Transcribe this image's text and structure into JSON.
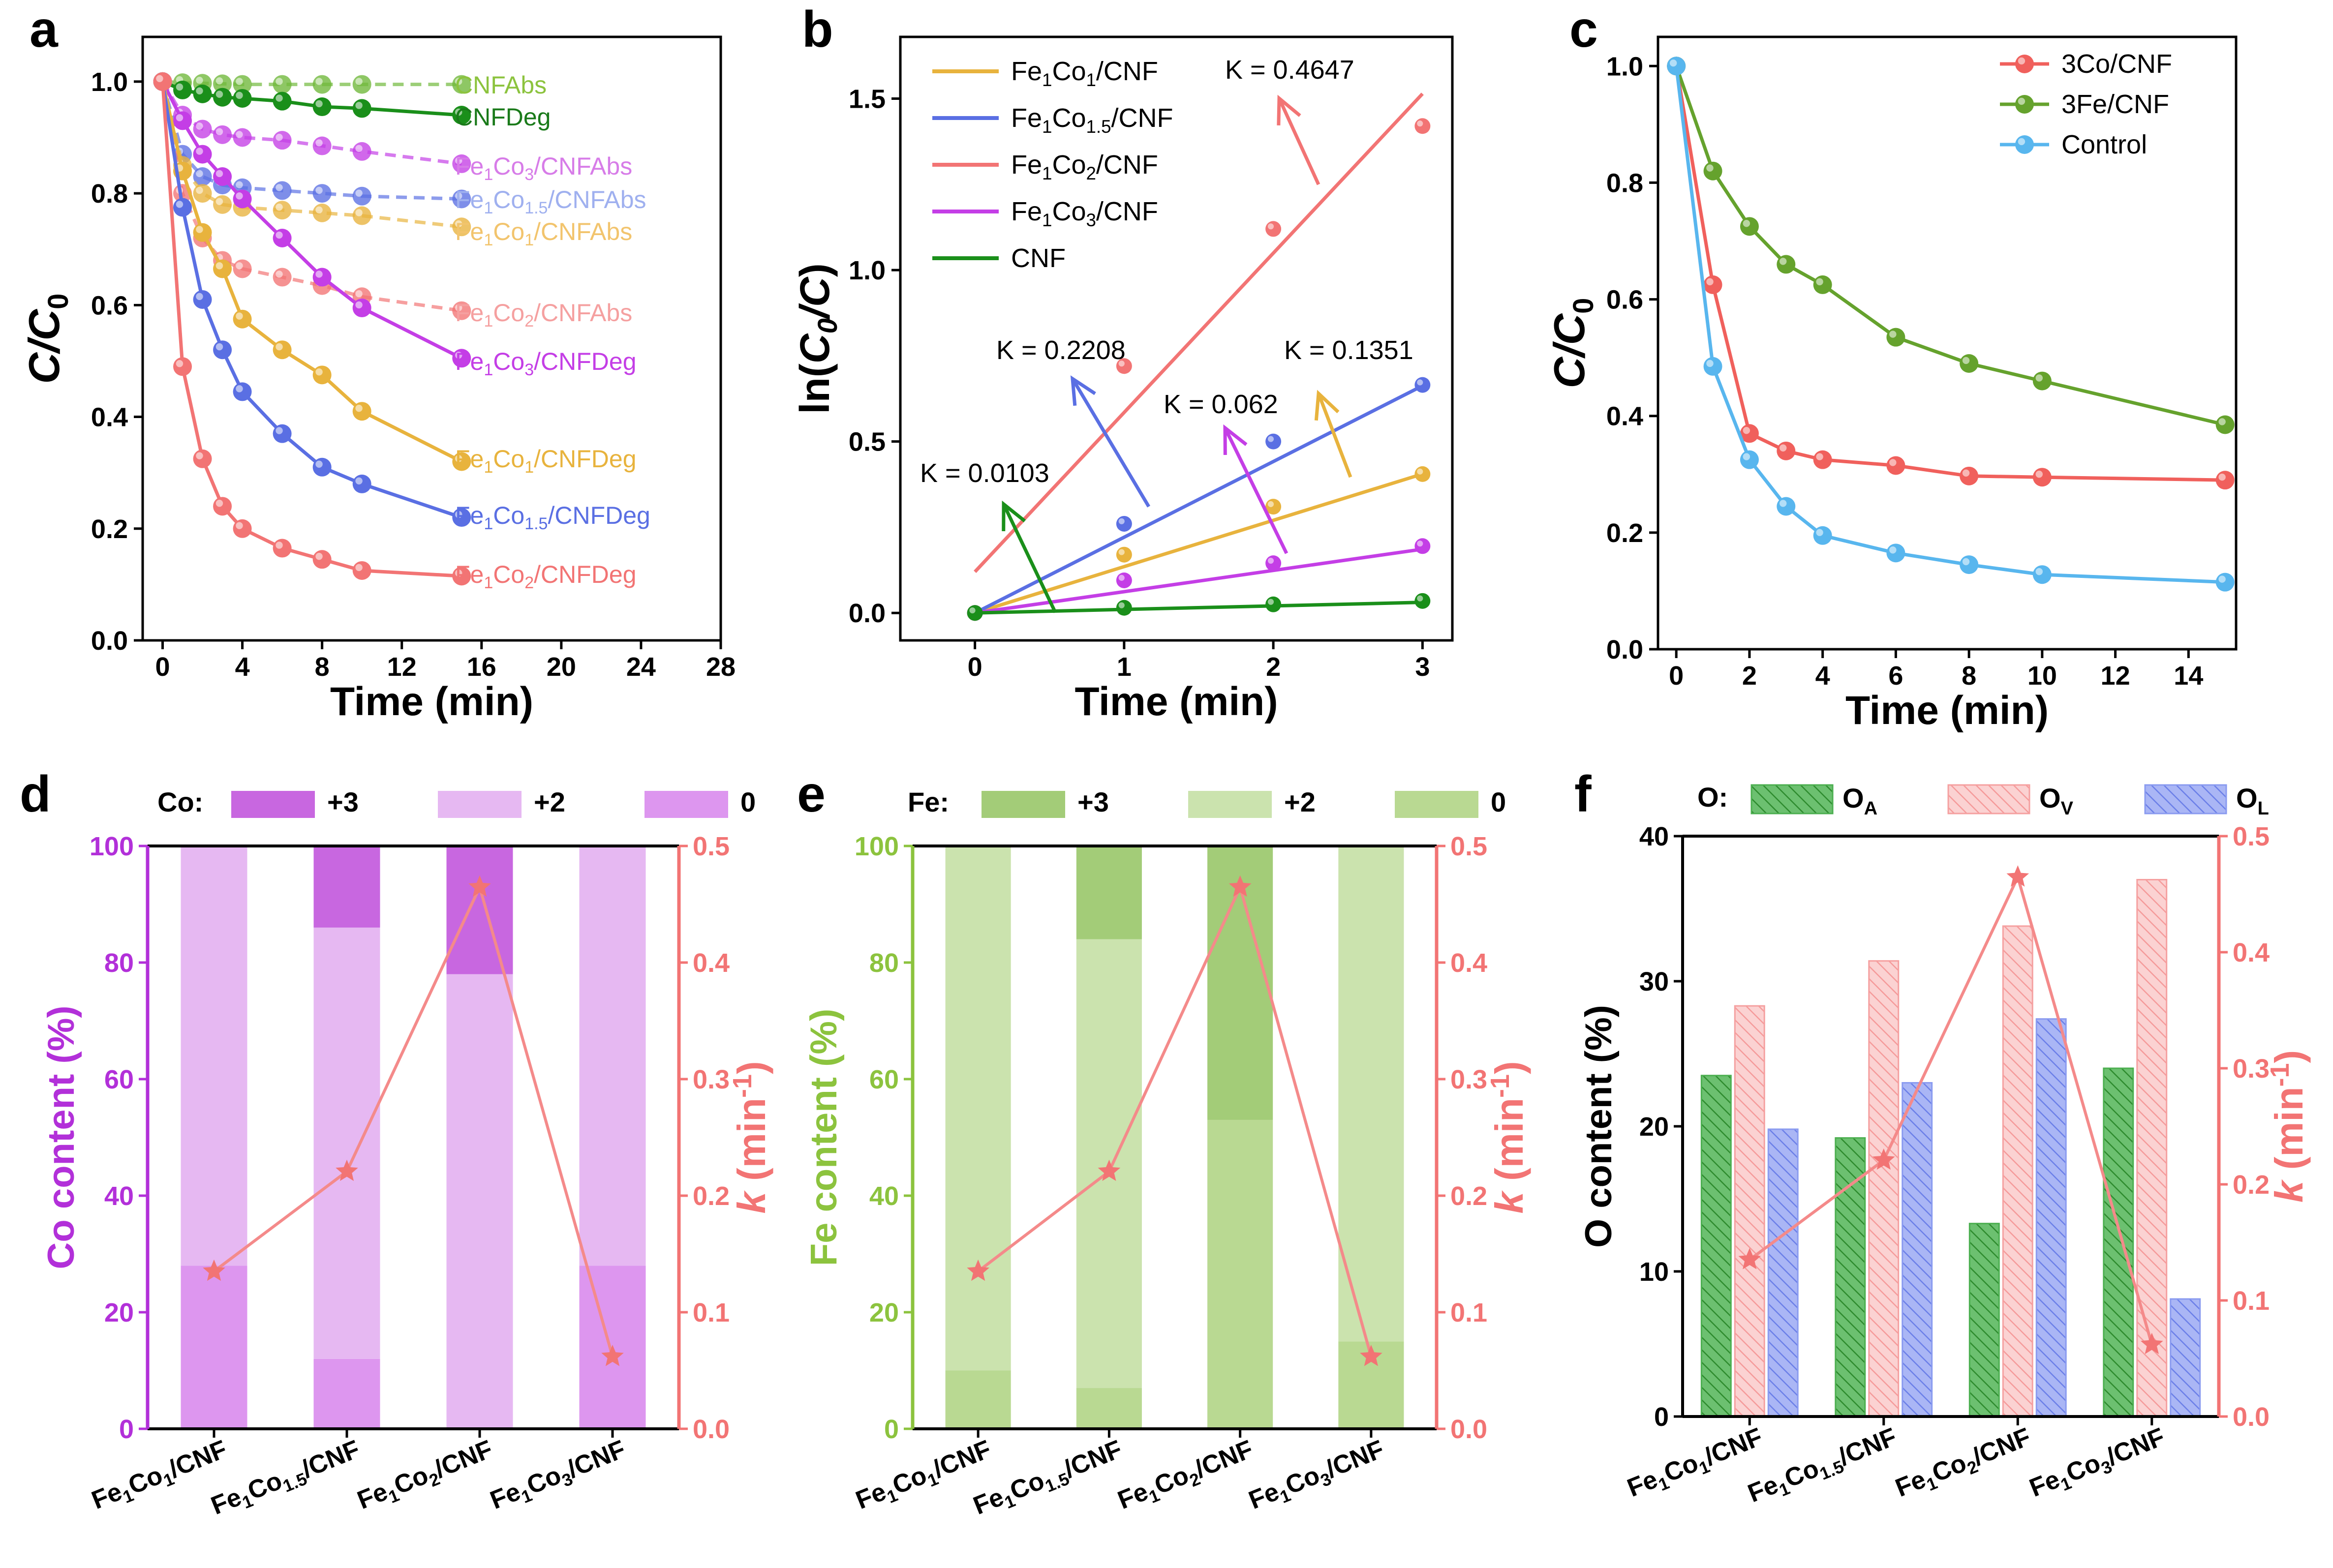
{
  "panel_letters": [
    "a",
    "b",
    "c",
    "d",
    "e",
    "f"
  ],
  "colors": {
    "cnf": "#1a8f1a",
    "cnf_abs": "#6fb83a",
    "fe1co1": "#e8b33d",
    "fe1co15": "#5a6fe3",
    "fe1co2": "#f27474",
    "fe1co3": "#c43ee6",
    "co3": "#f0605c",
    "fe3": "#65a22d",
    "control": "#58b6ee",
    "co_plus3": "#c867e0",
    "co_plus2": "#e6b8f2",
    "co_zero": "#dd96ef",
    "fe_plus3": "#a3cc78",
    "fe_plus2": "#cbe3ae",
    "fe_zero": "#b9d992",
    "oa": "#4caf50",
    "ov": "#f5a0a0",
    "ol": "#8a9bf0",
    "k_line": "#f48a8a",
    "co_axis": "#b230d9",
    "fe_axis": "#8cc33e",
    "k_axis": "#f27474"
  },
  "chart_data": [
    {
      "type": "line",
      "panel": "a",
      "xlabel": "Time (min)",
      "ylabel": "C/C0",
      "xlim": [
        -1,
        28
      ],
      "ylim": [
        0,
        1.08
      ],
      "xticks": [
        "0",
        "4",
        "8",
        "12",
        "16",
        "20",
        "24",
        "28"
      ],
      "yticks": [
        "0.0",
        "0.2",
        "0.4",
        "0.6",
        "0.8",
        "1.0"
      ],
      "series": [
        {
          "name": "CNF Abs",
          "x": [
            0,
            1,
            2,
            3,
            4,
            6,
            8,
            10,
            15
          ],
          "y": [
            1.0,
            0.998,
            0.997,
            0.996,
            0.995,
            0.995,
            0.995,
            0.995,
            0.995
          ]
        },
        {
          "name": "CNF Deg",
          "x": [
            0,
            1,
            2,
            3,
            4,
            6,
            8,
            10,
            15
          ],
          "y": [
            1.0,
            0.985,
            0.978,
            0.972,
            0.97,
            0.965,
            0.955,
            0.952,
            0.94
          ]
        },
        {
          "name": "Fe1Co3/CNF Abs",
          "x": [
            0,
            1,
            2,
            3,
            4,
            6,
            8,
            10,
            15
          ],
          "y": [
            1.0,
            0.94,
            0.915,
            0.905,
            0.9,
            0.895,
            0.885,
            0.875,
            0.853
          ]
        },
        {
          "name": "Fe1Co1.5/CNF Abs",
          "x": [
            0,
            1,
            2,
            3,
            4,
            6,
            8,
            10,
            15
          ],
          "y": [
            1.0,
            0.87,
            0.83,
            0.815,
            0.81,
            0.805,
            0.8,
            0.795,
            0.79
          ]
        },
        {
          "name": "Fe1Co1/CNF Abs",
          "x": [
            0,
            1,
            2,
            3,
            4,
            6,
            8,
            10,
            15
          ],
          "y": [
            1.0,
            0.85,
            0.8,
            0.78,
            0.775,
            0.77,
            0.765,
            0.76,
            0.74
          ]
        },
        {
          "name": "Fe1Co2/CNF Abs",
          "x": [
            0,
            1,
            2,
            3,
            4,
            6,
            8,
            10,
            15
          ],
          "y": [
            1.0,
            0.8,
            0.72,
            0.68,
            0.665,
            0.65,
            0.635,
            0.615,
            0.59
          ]
        },
        {
          "name": "Fe1Co3/CNF Deg",
          "x": [
            0,
            1,
            2,
            3,
            4,
            6,
            8,
            10,
            15
          ],
          "y": [
            1.0,
            0.93,
            0.87,
            0.83,
            0.79,
            0.72,
            0.65,
            0.595,
            0.505
          ]
        },
        {
          "name": "Fe1Co1/CNF Deg",
          "x": [
            0,
            1,
            2,
            3,
            4,
            6,
            8,
            10,
            15
          ],
          "y": [
            1.0,
            0.84,
            0.73,
            0.665,
            0.575,
            0.52,
            0.475,
            0.41,
            0.32
          ]
        },
        {
          "name": "Fe1Co1.5/CNF Deg",
          "x": [
            0,
            1,
            2,
            3,
            4,
            6,
            8,
            10,
            15
          ],
          "y": [
            1.0,
            0.775,
            0.61,
            0.52,
            0.445,
            0.37,
            0.31,
            0.28,
            0.22
          ]
        },
        {
          "name": "Fe1Co2/CNF Deg",
          "x": [
            0,
            1,
            2,
            3,
            4,
            6,
            8,
            10,
            15
          ],
          "y": [
            1.0,
            0.49,
            0.325,
            0.24,
            0.2,
            0.165,
            0.145,
            0.125,
            0.115
          ]
        }
      ]
    },
    {
      "type": "scatter",
      "panel": "b",
      "xlabel": "Time (min)",
      "ylabel": "ln(C0/C)",
      "xlim": [
        -0.5,
        3.2
      ],
      "ylim": [
        -0.08,
        1.68
      ],
      "xticks": [
        "0",
        "1",
        "2",
        "3"
      ],
      "yticks": [
        "0.0",
        "0.5",
        "1.0",
        "1.5"
      ],
      "series": [
        {
          "name": "Fe1Co1/CNF",
          "x": [
            0,
            1,
            2,
            3
          ],
          "y": [
            0.0,
            0.17,
            0.31,
            0.405
          ],
          "fit": [
            0.0,
            0.1351
          ],
          "k_label": "K = 0.1351"
        },
        {
          "name": "Fe1Co1.5/CNF",
          "x": [
            0,
            1,
            2,
            3
          ],
          "y": [
            0.0,
            0.26,
            0.5,
            0.665
          ],
          "fit": [
            0.0,
            0.2208
          ],
          "k_label": "K = 0.2208"
        },
        {
          "name": "Fe1Co2/CNF",
          "x": [
            0,
            1,
            2,
            3
          ],
          "y": [
            0.0,
            0.72,
            1.12,
            1.42
          ],
          "fit": [
            0.12,
            0.4647
          ],
          "k_label": "K = 0.4647"
        },
        {
          "name": "Fe1Co3/CNF",
          "x": [
            0,
            1,
            2,
            3
          ],
          "y": [
            0.0,
            0.095,
            0.145,
            0.195
          ],
          "fit": [
            0.0,
            0.062
          ],
          "k_label": "K = 0.062"
        },
        {
          "name": "CNF",
          "x": [
            0,
            1,
            2,
            3
          ],
          "y": [
            0.0,
            0.015,
            0.025,
            0.035
          ],
          "fit": [
            0.0,
            0.0103
          ],
          "k_label": "K = 0.0103"
        }
      ]
    },
    {
      "type": "line",
      "panel": "c",
      "xlabel": "Time (min)",
      "ylabel": "C/C0",
      "xlim": [
        -0.5,
        15.3
      ],
      "ylim": [
        0,
        1.05
      ],
      "xticks": [
        "0",
        "2",
        "4",
        "6",
        "8",
        "10",
        "12",
        "14"
      ],
      "yticks": [
        "0.0",
        "0.2",
        "0.4",
        "0.6",
        "0.8",
        "1.0"
      ],
      "series": [
        {
          "name": "3Co/CNF",
          "x": [
            0,
            1,
            2,
            3,
            4,
            6,
            8,
            10,
            15
          ],
          "y": [
            1.0,
            0.625,
            0.37,
            0.34,
            0.325,
            0.315,
            0.297,
            0.295,
            0.29
          ]
        },
        {
          "name": "3Fe/CNF",
          "x": [
            0,
            1,
            2,
            3,
            4,
            6,
            8,
            10,
            15
          ],
          "y": [
            1.0,
            0.82,
            0.725,
            0.66,
            0.625,
            0.535,
            0.49,
            0.46,
            0.385
          ]
        },
        {
          "name": "Control",
          "x": [
            0,
            1,
            2,
            3,
            4,
            6,
            8,
            10,
            15
          ],
          "y": [
            1.0,
            0.485,
            0.325,
            0.245,
            0.195,
            0.165,
            0.145,
            0.128,
            0.115
          ]
        }
      ]
    },
    {
      "type": "bar",
      "panel": "d",
      "stacked": true,
      "categories": [
        "Fe1Co1/CNF",
        "Fe1Co1.5/CNF",
        "Fe1Co2/CNF",
        "Fe1Co3/CNF"
      ],
      "ylabel": "Co content (%)",
      "y2label": "k (min-1)",
      "ylim": [
        0,
        100
      ],
      "y2lim": [
        0,
        0.5
      ],
      "yticks": [
        "0",
        "20",
        "40",
        "60",
        "80",
        "100"
      ],
      "y2ticks": [
        "0.0",
        "0.1",
        "0.2",
        "0.3",
        "0.4",
        "0.5"
      ],
      "legend_title": "Co:",
      "series": [
        {
          "name": "0",
          "values": [
            28,
            12,
            0,
            28
          ]
        },
        {
          "name": "+2",
          "values": [
            72,
            74,
            78,
            72
          ]
        },
        {
          "name": "+3",
          "values": [
            0,
            14,
            22,
            0
          ]
        }
      ],
      "k_values": [
        0.1351,
        0.2208,
        0.4647,
        0.062
      ]
    },
    {
      "type": "bar",
      "panel": "e",
      "stacked": true,
      "categories": [
        "Fe1Co1/CNF",
        "Fe1Co1.5/CNF",
        "Fe1Co2/CNF",
        "Fe1Co3/CNF"
      ],
      "ylabel": "Fe content (%)",
      "y2label": "k (min-1)",
      "ylim": [
        0,
        100
      ],
      "y2lim": [
        0,
        0.5
      ],
      "yticks": [
        "0",
        "20",
        "40",
        "60",
        "80",
        "100"
      ],
      "y2ticks": [
        "0.0",
        "0.1",
        "0.2",
        "0.3",
        "0.4",
        "0.5"
      ],
      "legend_title": "Fe:",
      "series": [
        {
          "name": "0",
          "values": [
            10,
            7,
            53,
            15
          ]
        },
        {
          "name": "+2",
          "values": [
            90,
            77,
            0,
            85
          ]
        },
        {
          "name": "+3",
          "values": [
            0,
            16,
            47,
            0
          ]
        }
      ],
      "k_values": [
        0.1351,
        0.2208,
        0.4647,
        0.062
      ]
    },
    {
      "type": "bar",
      "panel": "f",
      "categories": [
        "Fe1Co1/CNF",
        "Fe1Co1.5/CNF",
        "Fe1Co2/CNF",
        "Fe1Co3/CNF"
      ],
      "ylabel": "O content (%)",
      "y2label": "k (min-1)",
      "ylim": [
        0,
        40
      ],
      "y2lim": [
        0,
        0.5
      ],
      "yticks": [
        "0",
        "10",
        "20",
        "30",
        "40"
      ],
      "y2ticks": [
        "0.0",
        "0.1",
        "0.2",
        "0.3",
        "0.4",
        "0.5"
      ],
      "legend_title": "O:",
      "series": [
        {
          "name": "OA",
          "values": [
            23.5,
            19.2,
            13.3,
            24.0
          ]
        },
        {
          "name": "OV",
          "values": [
            28.3,
            31.4,
            33.8,
            37.0
          ]
        },
        {
          "name": "OL",
          "values": [
            19.8,
            23.0,
            27.4,
            8.1
          ]
        }
      ],
      "k_values": [
        0.1351,
        0.2208,
        0.4647,
        0.062
      ]
    }
  ]
}
